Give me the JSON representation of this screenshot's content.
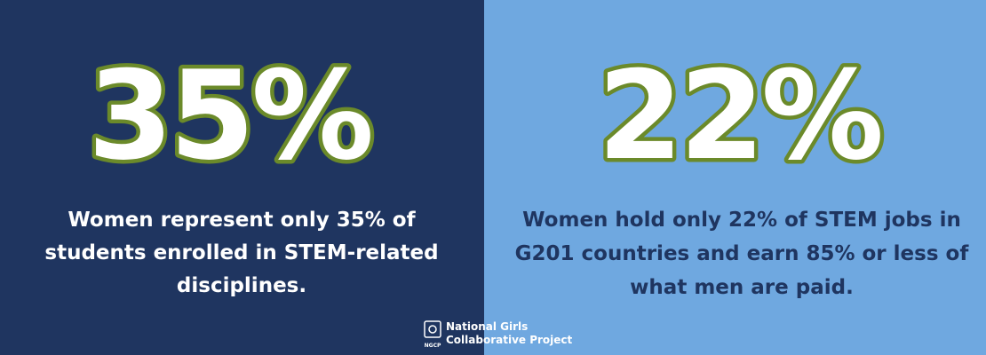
{
  "panels": [
    {
      "stat": "35%",
      "lines": [
        "Women represent only 35% of",
        "students enrolled in STEM-related",
        "disciplines."
      ]
    },
    {
      "stat": "22%",
      "lines": [
        "Women hold only 22% of STEM jobs in",
        "G201 countries and earn 85% or less of",
        "what men are paid."
      ]
    }
  ],
  "logo": {
    "mark": "NGCP",
    "lines": [
      "National Girls",
      "Collaborative Project"
    ]
  }
}
